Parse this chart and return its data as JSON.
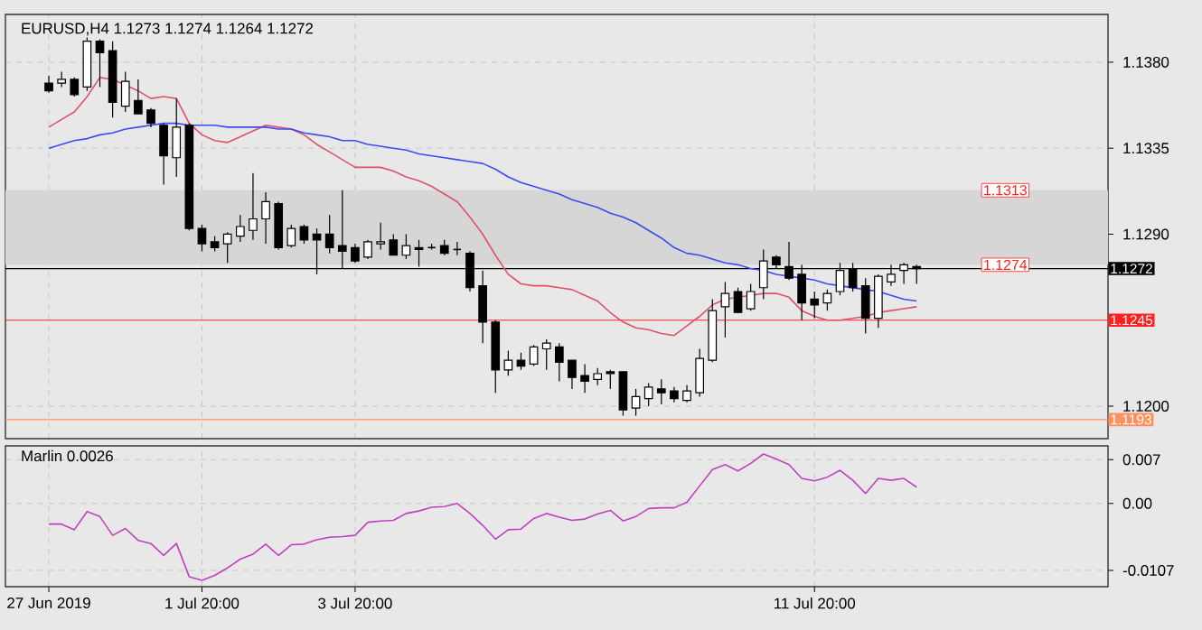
{
  "chart_data": [
    {
      "type": "candlestick",
      "title": "EURUSD,H4  1.1273 1.1274 1.1264 1.1272",
      "categories": [
        null,
        null,
        null,
        null,
        null,
        null,
        null,
        null,
        null,
        null,
        null,
        null,
        null,
        null,
        null,
        null,
        null,
        null,
        null,
        null,
        null,
        null,
        null,
        null,
        null,
        null,
        null,
        null,
        null,
        null,
        null,
        null,
        null,
        null,
        null,
        null,
        null,
        null,
        null,
        null,
        null,
        null,
        null,
        null,
        null,
        null,
        null,
        null,
        null,
        null,
        null,
        null,
        null,
        null,
        null,
        null,
        null,
        null,
        null,
        null,
        null,
        null,
        null,
        null,
        null,
        null,
        null,
        null,
        null
      ],
      "ohlc": [
        [
          1.1369,
          1.1373,
          1.1364,
          1.1365
        ],
        [
          1.1369,
          1.1375,
          1.1367,
          1.1371
        ],
        [
          1.1371,
          1.1372,
          1.1362,
          1.1363
        ],
        [
          1.1367,
          1.1393,
          1.1365,
          1.1391
        ],
        [
          1.1391,
          1.1392,
          1.1367,
          1.1385
        ],
        [
          1.1386,
          1.1391,
          1.1351,
          1.1359
        ],
        [
          1.1357,
          1.1375,
          1.1354,
          1.137
        ],
        [
          1.136,
          1.1371,
          1.1353,
          1.1353
        ],
        [
          1.1355,
          1.1356,
          1.1346,
          1.1348
        ],
        [
          1.1347,
          1.1348,
          1.1316,
          1.1331
        ],
        [
          1.133,
          1.1361,
          1.132,
          1.1346
        ],
        [
          1.1347,
          1.1348,
          1.1292,
          1.1293
        ],
        [
          1.1293,
          1.1295,
          1.1281,
          1.1285
        ],
        [
          1.1286,
          1.1289,
          1.1281,
          1.1283
        ],
        [
          1.1285,
          1.1291,
          1.1275,
          1.129
        ],
        [
          1.1289,
          1.13,
          1.1286,
          1.1294
        ],
        [
          1.1292,
          1.1322,
          1.1287,
          1.1298
        ],
        [
          1.1298,
          1.1312,
          1.1285,
          1.1307
        ],
        [
          1.1306,
          1.1307,
          1.1282,
          1.1283
        ],
        [
          1.1284,
          1.1295,
          1.1283,
          1.1293
        ],
        [
          1.1294,
          1.1295,
          1.1285,
          1.1287
        ],
        [
          1.129,
          1.1293,
          1.1269,
          1.1287
        ],
        [
          1.129,
          1.13,
          1.128,
          1.1283
        ],
        [
          1.1284,
          1.1313,
          1.1272,
          1.1281
        ],
        [
          1.1283,
          1.1285,
          1.1275,
          1.1276
        ],
        [
          1.1278,
          1.1287,
          1.1277,
          1.1286
        ],
        [
          1.1285,
          1.1296,
          1.1282,
          1.1286
        ],
        [
          1.1287,
          1.129,
          1.1279,
          1.1279
        ],
        [
          1.1279,
          1.129,
          1.1277,
          1.1284
        ],
        [
          1.1283,
          1.1287,
          1.1273,
          1.1282
        ],
        [
          1.1283,
          1.1285,
          1.1282,
          1.1283
        ],
        [
          1.1284,
          1.1287,
          1.1279,
          1.128
        ],
        [
          1.1282,
          1.1286,
          1.1279,
          1.1282
        ],
        [
          1.128,
          1.1281,
          1.126,
          1.1262
        ],
        [
          1.1263,
          1.1271,
          1.1233,
          1.1244
        ],
        [
          1.1244,
          1.1245,
          1.1207,
          1.1219
        ],
        [
          1.1219,
          1.1229,
          1.1216,
          1.1224
        ],
        [
          1.1224,
          1.1228,
          1.1219,
          1.1221
        ],
        [
          1.1222,
          1.1232,
          1.1221,
          1.1231
        ],
        [
          1.123,
          1.1235,
          1.1219,
          1.1233
        ],
        [
          1.1231,
          1.1233,
          1.1213,
          1.1223
        ],
        [
          1.1224,
          1.1224,
          1.1209,
          1.1215
        ],
        [
          1.1216,
          1.1222,
          1.1207,
          1.1213
        ],
        [
          1.1214,
          1.122,
          1.1211,
          1.1217
        ],
        [
          1.1218,
          1.1219,
          1.1209,
          1.1217
        ],
        [
          1.1218,
          1.1218,
          1.1195,
          1.1198
        ],
        [
          1.1199,
          1.1209,
          1.1195,
          1.1205
        ],
        [
          1.1204,
          1.1212,
          1.12,
          1.121
        ],
        [
          1.1209,
          1.1214,
          1.1201,
          1.1207
        ],
        [
          1.1208,
          1.121,
          1.1202,
          1.1204
        ],
        [
          1.1203,
          1.1211,
          1.1202,
          1.1208
        ],
        [
          1.1207,
          1.123,
          1.1205,
          1.1225
        ],
        [
          1.1224,
          1.1256,
          1.1223,
          1.125
        ],
        [
          1.1252,
          1.1265,
          1.1236,
          1.1259
        ],
        [
          1.126,
          1.1262,
          1.1249,
          1.1249
        ],
        [
          1.1251,
          1.1264,
          1.125,
          1.126
        ],
        [
          1.1262,
          1.1282,
          1.1256,
          1.1276
        ],
        [
          1.1278,
          1.1279,
          1.1272,
          1.1274
        ],
        [
          1.1273,
          1.1286,
          1.1266,
          1.1267
        ],
        [
          1.1269,
          1.1274,
          1.1245,
          1.1254
        ],
        [
          1.1256,
          1.126,
          1.1246,
          1.1253
        ],
        [
          1.1254,
          1.1261,
          1.125,
          1.1259
        ],
        [
          1.126,
          1.1275,
          1.1258,
          1.1271
        ],
        [
          1.1272,
          1.1275,
          1.126,
          1.1262
        ],
        [
          1.1263,
          1.1267,
          1.1238,
          1.1246
        ],
        [
          1.1246,
          1.1269,
          1.1241,
          1.1268
        ],
        [
          1.1265,
          1.1274,
          1.1263,
          1.1269
        ],
        [
          1.1271,
          1.1275,
          1.1264,
          1.1274
        ],
        [
          1.1273,
          1.1274,
          1.1264,
          1.1272
        ]
      ],
      "series": [
        {
          "type": "line",
          "color": "#e0506a",
          "values": [
            1.1346,
            1.135,
            1.1354,
            1.1362,
            1.1372,
            1.1371,
            1.1368,
            1.1365,
            1.1361,
            1.1362,
            1.1361,
            1.1348,
            1.1342,
            1.1339,
            1.1338,
            1.1341,
            1.1344,
            1.1347,
            1.1346,
            1.1345,
            1.1342,
            1.1337,
            1.1333,
            1.1329,
            1.1325,
            1.1325,
            1.1325,
            1.1323,
            1.132,
            1.1318,
            1.1315,
            1.1311,
            1.1307,
            1.1299,
            1.129,
            1.1279,
            1.1269,
            1.1264,
            1.1263,
            1.1263,
            1.1262,
            1.1261,
            1.1258,
            1.1255,
            1.1249,
            1.1244,
            1.1241,
            1.124,
            1.1238,
            1.1237,
            1.1242,
            1.1247,
            1.1253,
            1.1256,
            1.1257,
            1.1258,
            1.1259,
            1.1259,
            1.1257,
            1.125,
            1.1247,
            1.1245,
            1.1245,
            1.1246,
            1.1247,
            1.1249,
            1.125,
            1.1251,
            1.1252
          ]
        },
        {
          "type": "line",
          "color": "#3a4cf0",
          "values": [
            1.1335,
            1.1337,
            1.1339,
            1.134,
            1.1342,
            1.1343,
            1.1345,
            1.1346,
            1.1347,
            1.1348,
            1.1348,
            1.1347,
            1.1347,
            1.1347,
            1.1346,
            1.1346,
            1.1346,
            1.1346,
            1.1345,
            1.1345,
            1.1343,
            1.1342,
            1.1341,
            1.1339,
            1.1339,
            1.1337,
            1.1336,
            1.1335,
            1.1334,
            1.1332,
            1.1331,
            1.133,
            1.1329,
            1.1328,
            1.1327,
            1.1324,
            1.132,
            1.1317,
            1.1315,
            1.1313,
            1.1311,
            1.1308,
            1.1306,
            1.1304,
            1.1301,
            1.1299,
            1.1296,
            1.1292,
            1.1288,
            1.1283,
            1.128,
            1.1279,
            1.1277,
            1.1275,
            1.1274,
            1.1272,
            1.1271,
            1.1269,
            1.1268,
            1.1267,
            1.1266,
            1.1264,
            1.1263,
            1.1262,
            1.1261,
            1.126,
            1.1258,
            1.1256,
            1.1255
          ]
        }
      ],
      "ylim": [
        1.1183,
        1.1405
      ],
      "yticks": [
        {
          "value": 1.138,
          "label": "1.1380"
        },
        {
          "value": 1.1335,
          "label": "1.1335"
        },
        {
          "value": 1.129,
          "label": "1.1290"
        },
        {
          "value": 1.12,
          "label": "1.1200"
        }
      ],
      "tick_labels": "y",
      "grid": true,
      "bands": [
        {
          "axis": "y",
          "from": 1.1274,
          "to": 1.1313,
          "color": "#d6d6d6"
        }
      ],
      "ref_lines": [
        {
          "axis": "y",
          "value": 1.1272,
          "label": "1.1272",
          "color": "#000000"
        },
        {
          "axis": "y",
          "value": 1.1245,
          "label": "1.1245",
          "color": "#ff2020"
        },
        {
          "axis": "y",
          "value": 1.1193,
          "label": "1.1193",
          "color": "#ff9060"
        }
      ],
      "annotations": [
        {
          "text": "1.1313",
          "y": 1.1313
        },
        {
          "text": "1.1274",
          "y": 1.1274
        }
      ]
    },
    {
      "type": "line",
      "title": "Marlin 0.0026",
      "categories": [
        "27 Jun 2019",
        null,
        null,
        null,
        null,
        null,
        null,
        null,
        null,
        null,
        null,
        null,
        "1 Jul 20:00",
        null,
        null,
        null,
        null,
        null,
        null,
        null,
        null,
        null,
        null,
        null,
        "3 Jul 20:00",
        null,
        null,
        null,
        null,
        null,
        null,
        null,
        null,
        null,
        null,
        null,
        null,
        null,
        null,
        null,
        null,
        null,
        null,
        null,
        null,
        null,
        null,
        null,
        null,
        null,
        null,
        null,
        null,
        null,
        null,
        null,
        null,
        null,
        null,
        null,
        "11 Jul 20:00",
        null,
        null,
        null,
        null,
        null,
        null,
        null,
        null
      ],
      "series": [
        {
          "color": "#c040c0",
          "values": [
            -0.0033,
            -0.0033,
            -0.0042,
            -0.0013,
            -0.0021,
            -0.0051,
            -0.004,
            -0.0059,
            -0.0064,
            -0.0083,
            -0.0064,
            -0.0117,
            -0.0123,
            -0.0115,
            -0.0103,
            -0.0089,
            -0.0081,
            -0.0065,
            -0.0083,
            -0.0066,
            -0.0065,
            -0.0058,
            -0.0054,
            -0.0053,
            -0.0051,
            -0.003,
            -0.0028,
            -0.0027,
            -0.0016,
            -0.0012,
            -0.0006,
            -0.0005,
            0.0,
            -0.0016,
            -0.0035,
            -0.0057,
            -0.0042,
            -0.0041,
            -0.0024,
            -0.0016,
            -0.0022,
            -0.0027,
            -0.0025,
            -0.0017,
            -0.0011,
            -0.0028,
            -0.0021,
            -0.0008,
            -0.0007,
            -0.0007,
            0.0002,
            0.0028,
            0.0054,
            0.0062,
            0.0052,
            0.0064,
            0.0079,
            0.0071,
            0.0062,
            0.004,
            0.0036,
            0.0042,
            0.0053,
            0.0037,
            0.0016,
            0.004,
            0.0037,
            0.004,
            0.0026
          ]
        }
      ],
      "ylim": [
        -0.0133,
        0.0092
      ],
      "yticks": [
        {
          "value": 0.007,
          "label": "0.007"
        },
        {
          "value": 0,
          "label": "0.00"
        },
        {
          "value": -0.0107,
          "label": "-0.0107"
        }
      ],
      "grid": true
    }
  ]
}
